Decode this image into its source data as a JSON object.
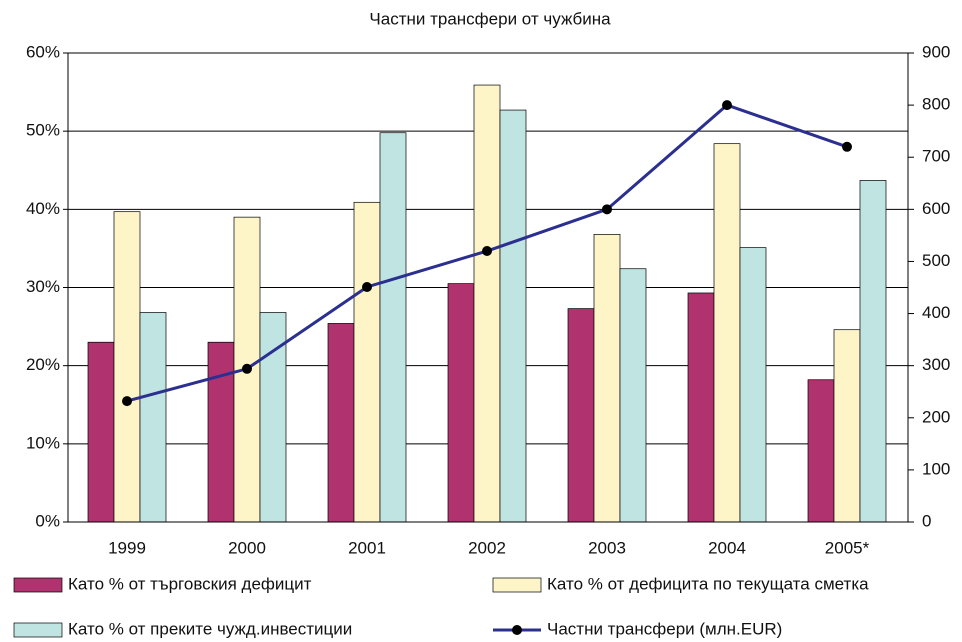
{
  "chart_data": {
    "type": "bar",
    "title": "Частни трансфери от чужбина",
    "categories": [
      "1999",
      "2000",
      "2001",
      "2002",
      "2003",
      "2004",
      "2005*"
    ],
    "series": [
      {
        "name": "Като % от търговския дефицит",
        "color": "#b0336f",
        "values": [
          23,
          23,
          25.4,
          30.5,
          27.3,
          29.3,
          18.2
        ]
      },
      {
        "name": "Като % от дефицита по текущата сметка",
        "color": "#fdf5c8",
        "values": [
          39.7,
          39,
          40.9,
          55.9,
          36.8,
          48.4,
          24.6
        ]
      },
      {
        "name": "Като % от преките чужд.инвестиции",
        "color": "#c0e4e2",
        "values": [
          26.8,
          26.8,
          49.8,
          52.7,
          32.4,
          35.1,
          43.7
        ]
      },
      {
        "name": "Частни трансфери (млн.EUR)",
        "color": "#2b2f8f",
        "type": "line",
        "axis": "y2",
        "values": [
          232,
          294,
          451,
          520,
          600,
          800,
          720
        ]
      }
    ],
    "ylim": [
      0,
      60
    ],
    "yticks": [
      {
        "value": 0,
        "label": "0%"
      },
      {
        "value": 10,
        "label": "10%"
      },
      {
        "value": 20,
        "label": "20%"
      },
      {
        "value": 30,
        "label": "30%"
      },
      {
        "value": 40,
        "label": "40%"
      },
      {
        "value": 50,
        "label": "50%"
      },
      {
        "value": 60,
        "label": "60%"
      }
    ],
    "y2lim": [
      0,
      900
    ],
    "y2ticks": [
      0,
      100,
      200,
      300,
      400,
      500,
      600,
      700,
      800,
      900
    ],
    "grid": true
  }
}
